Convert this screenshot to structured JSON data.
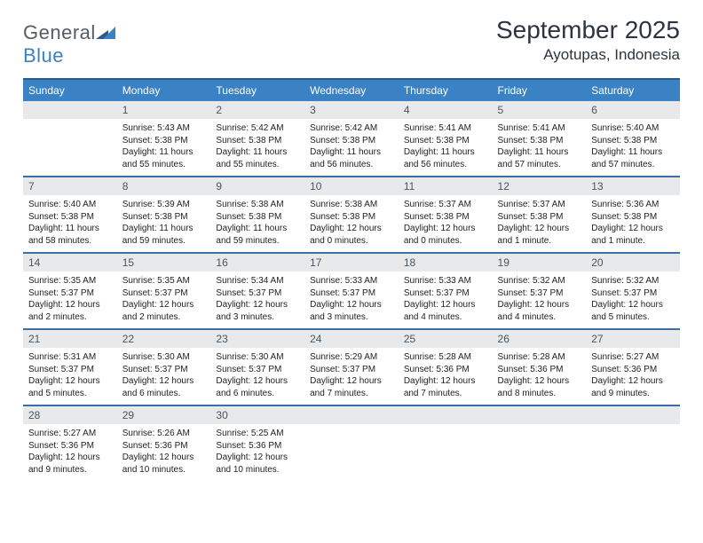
{
  "logo": {
    "word1": "General",
    "word2": "Blue"
  },
  "header": {
    "month": "September 2025",
    "location": "Ayotupas, Indonesia"
  },
  "dayNames": [
    "Sunday",
    "Monday",
    "Tuesday",
    "Wednesday",
    "Thursday",
    "Friday",
    "Saturday"
  ],
  "colors": {
    "headerBg": "#3b82c4",
    "headerText": "#ffffff",
    "rowBorder": "#3b6fa3",
    "dayNumBg": "#e7e9eb",
    "dayNumText": "#4a5560",
    "bodyText": "#222222",
    "titleText": "#2b3440",
    "logoGray": "#555c63",
    "logoBlue": "#3b82c4",
    "pageBg": "#ffffff"
  },
  "typography": {
    "month_fontsize": 28,
    "location_fontsize": 17,
    "dayheader_fontsize": 12,
    "daynum_fontsize": 12,
    "body_fontsize": 10,
    "font_family": "Arial"
  },
  "grid": {
    "cols": 7,
    "rows": 5,
    "first_weekday_index": 1,
    "days_in_month": 30
  },
  "days": [
    {
      "n": 1,
      "sunrise": "5:43 AM",
      "sunset": "5:38 PM",
      "daylight": "11 hours and 55 minutes."
    },
    {
      "n": 2,
      "sunrise": "5:42 AM",
      "sunset": "5:38 PM",
      "daylight": "11 hours and 55 minutes."
    },
    {
      "n": 3,
      "sunrise": "5:42 AM",
      "sunset": "5:38 PM",
      "daylight": "11 hours and 56 minutes."
    },
    {
      "n": 4,
      "sunrise": "5:41 AM",
      "sunset": "5:38 PM",
      "daylight": "11 hours and 56 minutes."
    },
    {
      "n": 5,
      "sunrise": "5:41 AM",
      "sunset": "5:38 PM",
      "daylight": "11 hours and 57 minutes."
    },
    {
      "n": 6,
      "sunrise": "5:40 AM",
      "sunset": "5:38 PM",
      "daylight": "11 hours and 57 minutes."
    },
    {
      "n": 7,
      "sunrise": "5:40 AM",
      "sunset": "5:38 PM",
      "daylight": "11 hours and 58 minutes."
    },
    {
      "n": 8,
      "sunrise": "5:39 AM",
      "sunset": "5:38 PM",
      "daylight": "11 hours and 59 minutes."
    },
    {
      "n": 9,
      "sunrise": "5:38 AM",
      "sunset": "5:38 PM",
      "daylight": "11 hours and 59 minutes."
    },
    {
      "n": 10,
      "sunrise": "5:38 AM",
      "sunset": "5:38 PM",
      "daylight": "12 hours and 0 minutes."
    },
    {
      "n": 11,
      "sunrise": "5:37 AM",
      "sunset": "5:38 PM",
      "daylight": "12 hours and 0 minutes."
    },
    {
      "n": 12,
      "sunrise": "5:37 AM",
      "sunset": "5:38 PM",
      "daylight": "12 hours and 1 minute."
    },
    {
      "n": 13,
      "sunrise": "5:36 AM",
      "sunset": "5:38 PM",
      "daylight": "12 hours and 1 minute."
    },
    {
      "n": 14,
      "sunrise": "5:35 AM",
      "sunset": "5:37 PM",
      "daylight": "12 hours and 2 minutes."
    },
    {
      "n": 15,
      "sunrise": "5:35 AM",
      "sunset": "5:37 PM",
      "daylight": "12 hours and 2 minutes."
    },
    {
      "n": 16,
      "sunrise": "5:34 AM",
      "sunset": "5:37 PM",
      "daylight": "12 hours and 3 minutes."
    },
    {
      "n": 17,
      "sunrise": "5:33 AM",
      "sunset": "5:37 PM",
      "daylight": "12 hours and 3 minutes."
    },
    {
      "n": 18,
      "sunrise": "5:33 AM",
      "sunset": "5:37 PM",
      "daylight": "12 hours and 4 minutes."
    },
    {
      "n": 19,
      "sunrise": "5:32 AM",
      "sunset": "5:37 PM",
      "daylight": "12 hours and 4 minutes."
    },
    {
      "n": 20,
      "sunrise": "5:32 AM",
      "sunset": "5:37 PM",
      "daylight": "12 hours and 5 minutes."
    },
    {
      "n": 21,
      "sunrise": "5:31 AM",
      "sunset": "5:37 PM",
      "daylight": "12 hours and 5 minutes."
    },
    {
      "n": 22,
      "sunrise": "5:30 AM",
      "sunset": "5:37 PM",
      "daylight": "12 hours and 6 minutes."
    },
    {
      "n": 23,
      "sunrise": "5:30 AM",
      "sunset": "5:37 PM",
      "daylight": "12 hours and 6 minutes."
    },
    {
      "n": 24,
      "sunrise": "5:29 AM",
      "sunset": "5:37 PM",
      "daylight": "12 hours and 7 minutes."
    },
    {
      "n": 25,
      "sunrise": "5:28 AM",
      "sunset": "5:36 PM",
      "daylight": "12 hours and 7 minutes."
    },
    {
      "n": 26,
      "sunrise": "5:28 AM",
      "sunset": "5:36 PM",
      "daylight": "12 hours and 8 minutes."
    },
    {
      "n": 27,
      "sunrise": "5:27 AM",
      "sunset": "5:36 PM",
      "daylight": "12 hours and 9 minutes."
    },
    {
      "n": 28,
      "sunrise": "5:27 AM",
      "sunset": "5:36 PM",
      "daylight": "12 hours and 9 minutes."
    },
    {
      "n": 29,
      "sunrise": "5:26 AM",
      "sunset": "5:36 PM",
      "daylight": "12 hours and 10 minutes."
    },
    {
      "n": 30,
      "sunrise": "5:25 AM",
      "sunset": "5:36 PM",
      "daylight": "12 hours and 10 minutes."
    }
  ],
  "labels": {
    "sunrise": "Sunrise:",
    "sunset": "Sunset:",
    "daylight": "Daylight:"
  }
}
